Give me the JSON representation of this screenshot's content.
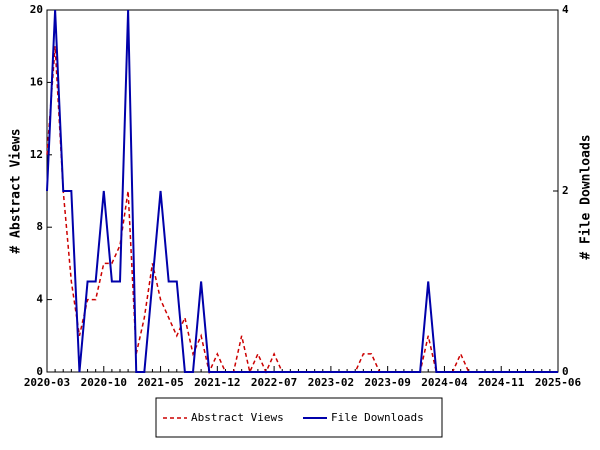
{
  "chart_data": {
    "type": "line",
    "categories": [
      "2020-03",
      null,
      null,
      null,
      null,
      null,
      null,
      "2020-10",
      null,
      null,
      null,
      null,
      null,
      null,
      "2021-05",
      null,
      null,
      null,
      null,
      null,
      null,
      "2021-12",
      null,
      null,
      null,
      null,
      null,
      null,
      "2022-07",
      null,
      null,
      null,
      null,
      null,
      null,
      "2023-02",
      null,
      null,
      null,
      null,
      null,
      null,
      "2023-09",
      null,
      null,
      null,
      null,
      null,
      null,
      "2024-04",
      null,
      null,
      null,
      null,
      null,
      null,
      "2024-11",
      null,
      null,
      null,
      null,
      null,
      null,
      "2025-06"
    ],
    "series": [
      {
        "name": "Abstract Views",
        "color": "#cc0000",
        "dashed": true,
        "values": [
          12,
          18,
          10,
          5,
          2,
          4,
          4,
          6,
          6,
          7,
          10,
          1,
          3,
          6,
          4,
          3,
          2,
          3,
          1,
          2,
          0,
          1,
          0,
          0,
          2,
          0,
          1,
          0,
          1,
          0,
          0,
          0,
          0,
          0,
          0,
          0,
          0,
          0,
          0,
          1,
          1,
          0,
          0,
          0,
          0,
          0,
          0,
          2,
          0,
          0,
          0,
          1,
          0,
          0,
          0,
          0,
          0,
          0,
          0,
          0,
          0,
          0,
          0,
          0
        ]
      },
      {
        "name": "File Downloads",
        "color": "#0000aa",
        "axis": "y2",
        "values": [
          2,
          4,
          2,
          2,
          0,
          1,
          1,
          2,
          1,
          1,
          4,
          0,
          0,
          1,
          2,
          1,
          1,
          0,
          0,
          1,
          0,
          0,
          0,
          0,
          0,
          0,
          0,
          0,
          0,
          0,
          0,
          0,
          0,
          0,
          0,
          0,
          0,
          0,
          0,
          0,
          0,
          0,
          0,
          0,
          0,
          0,
          0,
          1,
          0,
          0,
          0,
          0,
          0,
          0,
          0,
          0,
          0,
          0,
          0,
          0,
          0,
          0,
          0,
          0
        ]
      }
    ],
    "y_label": "# Abstract Views",
    "y2_label": "# File Downloads",
    "ylim": [
      0,
      20
    ],
    "yticks": [
      0,
      4,
      8,
      12,
      16,
      20
    ],
    "y2lim": [
      0,
      4
    ],
    "y2ticks": [
      0,
      2,
      4
    ]
  }
}
